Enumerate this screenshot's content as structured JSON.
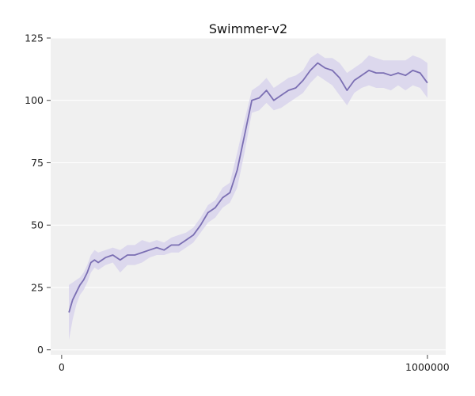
{
  "chart_data": {
    "type": "line",
    "title": "Swimmer-v2",
    "xlabel": "",
    "ylabel": "",
    "xlim": [
      -30000,
      1050000
    ],
    "ylim": [
      -2,
      125
    ],
    "xticks": [
      0,
      1000000
    ],
    "xtick_labels": [
      "0",
      "1000000"
    ],
    "yticks": [
      0,
      25,
      50,
      75,
      100,
      125
    ],
    "ytick_labels": [
      "0",
      "25",
      "50",
      "75",
      "100",
      "125"
    ],
    "grid": true,
    "legend": "none",
    "background_color": "#f0f0f0",
    "grid_color": "#ffffff",
    "line_color": "#7b6fb3",
    "band_color": "#d8d4ec",
    "series": [
      {
        "x": [
          20000,
          30000,
          40000,
          50000,
          60000,
          70000,
          80000,
          90000,
          100000,
          120000,
          140000,
          160000,
          180000,
          200000,
          220000,
          240000,
          260000,
          280000,
          300000,
          320000,
          340000,
          360000,
          380000,
          400000,
          420000,
          440000,
          460000,
          480000,
          500000,
          520000,
          540000,
          560000,
          580000,
          600000,
          620000,
          640000,
          660000,
          680000,
          700000,
          720000,
          740000,
          760000,
          780000,
          800000,
          820000,
          840000,
          860000,
          880000,
          900000,
          920000,
          940000,
          960000,
          980000,
          1000000
        ],
        "y": [
          15,
          20,
          23,
          26,
          28,
          31,
          35,
          36,
          35,
          37,
          38,
          36,
          38,
          38,
          39,
          40,
          41,
          40,
          42,
          42,
          44,
          46,
          50,
          55,
          57,
          61,
          63,
          72,
          86,
          100,
          101,
          104,
          100,
          102,
          104,
          105,
          108,
          112,
          115,
          113,
          112,
          109,
          104,
          108,
          110,
          112,
          111,
          111,
          110,
          111,
          110,
          112,
          111,
          107
        ],
        "lower": [
          4,
          12,
          18,
          22,
          24,
          27,
          31,
          33,
          32,
          34,
          35,
          31,
          34,
          34,
          35,
          37,
          38,
          38,
          39,
          39,
          41,
          43,
          47,
          51,
          53,
          57,
          59,
          65,
          79,
          95,
          96,
          99,
          96,
          97,
          99,
          101,
          103,
          107,
          110,
          108,
          106,
          102,
          98,
          103,
          105,
          106,
          105,
          105,
          104,
          106,
          104,
          106,
          105,
          101
        ],
        "upper": [
          26,
          27,
          28,
          29,
          31,
          34,
          38,
          40,
          39,
          40,
          41,
          40,
          42,
          42,
          44,
          43,
          44,
          43,
          45,
          46,
          47,
          49,
          53,
          58,
          60,
          65,
          67,
          79,
          92,
          104,
          106,
          109,
          105,
          107,
          109,
          110,
          112,
          117,
          119,
          117,
          117,
          115,
          111,
          113,
          115,
          118,
          117,
          116,
          116,
          116,
          116,
          118,
          117,
          115
        ]
      }
    ]
  }
}
